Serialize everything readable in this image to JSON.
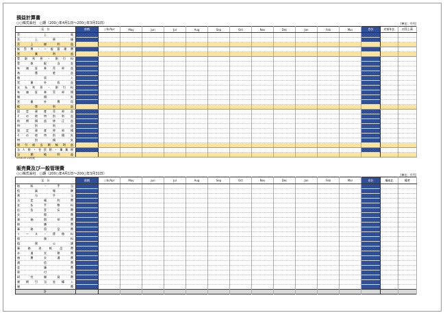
{
  "colors": {
    "accent_blue": "#2f4f98",
    "highlight": "#fce49c",
    "total_gray": "#d9d9d9"
  },
  "pl": {
    "title": "損益計算書",
    "subtitle": "○○株式会社　○期（200○年4月1日～200○年3月31日）",
    "unit": "[単位：千円]",
    "headers": [
      "区　分",
      "前期",
      "○年/Apr",
      "May",
      "Jun",
      "Jul",
      "Aug",
      "Sep",
      "Oct",
      "Nov",
      "Dec",
      "Jan",
      "Feb",
      "Mar",
      "合計",
      "対前年比",
      "対売上高"
    ],
    "rows": [
      {
        "label": "売上高",
        "hl": false
      },
      {
        "label": "売上原価",
        "hl": false
      },
      {
        "label": "売上総利益",
        "hl": true
      },
      {
        "label": "販売費・一般管理費",
        "hl": false
      },
      {
        "label": "営業利益",
        "hl": true
      },
      {
        "label": "受取利息・割引料",
        "hl": false
      },
      {
        "label": "受取配当金",
        "hl": false
      },
      {
        "label": "有価証券売却益",
        "hl": false
      },
      {
        "label": "為替差益",
        "hl": false
      },
      {
        "label": "雑収入",
        "hl": false
      },
      {
        "label": "営業外収益",
        "hl": false
      },
      {
        "label": "支払利息・割引料",
        "hl": false
      },
      {
        "label": "有価証券売却損",
        "hl": false
      },
      {
        "label": "雑損失",
        "hl": false
      },
      {
        "label": "営業外費用",
        "hl": false
      },
      {
        "label": "経常利益",
        "hl": true
      },
      {
        "label": "固定資産売却益",
        "hl": false
      },
      {
        "label": "その他特別利益",
        "hl": false
      },
      {
        "label": "前期損益修正益",
        "hl": false
      },
      {
        "label": "特別利益",
        "hl": false
      },
      {
        "label": "固定資産除却損",
        "hl": false
      },
      {
        "label": "その他特別損失",
        "hl": false
      },
      {
        "label": "特別損失",
        "hl": false
      },
      {
        "label": "税引前当期純利益",
        "hl": true
      },
      {
        "label": "法人税・住民税・事業税",
        "hl": false
      },
      {
        "label": "当期純利益",
        "hl": true
      }
    ]
  },
  "note": "2008.09.24作成",
  "sga": {
    "title": "販売費及び一般管理費",
    "subtitle": "○○株式会社　○期（200○年4月1日～200○年3月31日）",
    "unit": "[単位：千円]",
    "headers": [
      "区　分",
      "前期",
      "○年/Apr",
      "May",
      "Jun",
      "Jul",
      "Aug",
      "Sep",
      "Oct",
      "Nov",
      "Dec",
      "Jan",
      "Feb",
      "Mar",
      "合計",
      "構成比",
      "備考"
    ],
    "rows": [
      "給料・手当",
      "役員報酬",
      "賞与手当",
      "法定福利費",
      "支払手数料",
      "広告宣伝費",
      "交際費",
      "減価償却費",
      "修繕費",
      "事務用品費",
      "リース・賃借料",
      "保険料",
      "租税公課",
      "事務消耗品費",
      "水道光熱費",
      "旅費交通費",
      "通信費",
      "会議費",
      "寄付金",
      "研究開発費",
      "貸倒引当金繰入",
      "雑費"
    ],
    "total": "計"
  }
}
